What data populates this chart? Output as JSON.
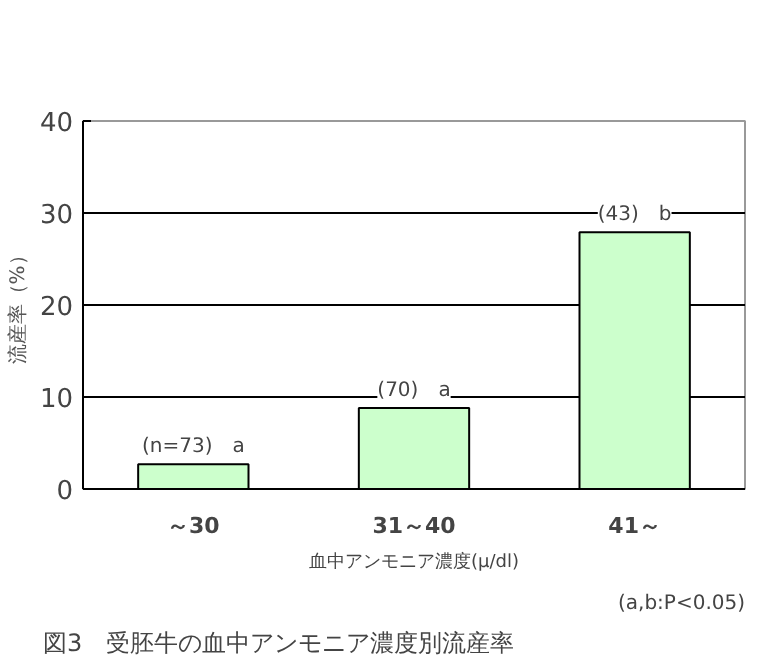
{
  "chart_data": {
    "type": "bar",
    "title": "図3　受胚牛の血中アンモニア濃度別流産率",
    "xlabel": "血中アンモニア濃度(μ/dl)",
    "ylabel": "流産率（%）",
    "categories": [
      "～30",
      "31～40",
      "41～"
    ],
    "values": [
      2.7,
      8.8,
      27.9
    ],
    "color": "#ccffcc",
    "ylim": [
      0,
      40
    ],
    "yticks": [
      0,
      10,
      20,
      30,
      40
    ],
    "grid": "y",
    "annotations": [
      {
        "text": "(n=73)　a",
        "x": "～30",
        "y": 2.7
      },
      {
        "text": "(70)　a",
        "x": "31～40",
        "y": 8.8
      },
      {
        "text": "(43)　b",
        "x": "41～",
        "y": 27.9
      },
      "(a,b:P<0.05)"
    ]
  }
}
